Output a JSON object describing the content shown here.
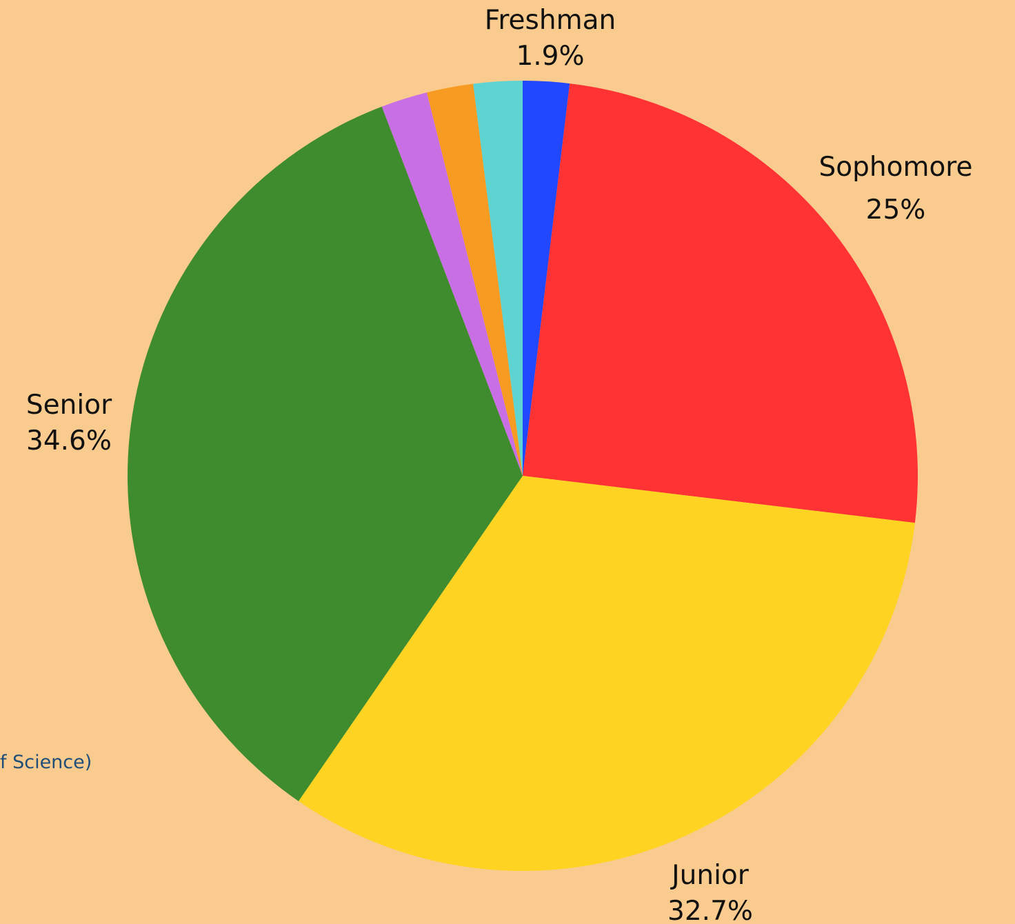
{
  "background_color": "#FACB8E",
  "partial_text": "f Science)",
  "chart_data": {
    "type": "pie",
    "title": "",
    "start_angle_deg": 0,
    "direction": "clockwise",
    "slices": [
      {
        "name": "Freshman",
        "value": 1.9,
        "label": "Freshman",
        "value_label": "1.9%",
        "color": "#2147FF"
      },
      {
        "name": "Sophomore",
        "value": 25.0,
        "label": "Sophomore",
        "value_label": "25%",
        "color": "#FF3333"
      },
      {
        "name": "Junior",
        "value": 32.7,
        "label": "Junior",
        "value_label": "32.7%",
        "color": "#FED322"
      },
      {
        "name": "Senior",
        "value": 34.6,
        "label": "Senior",
        "value_label": "34.6%",
        "color": "#3F8C2E"
      },
      {
        "name": "",
        "value": 1.9,
        "label": "",
        "value_label": "",
        "color": "#C86FE6"
      },
      {
        "name": "",
        "value": 1.9,
        "label": "",
        "value_label": "",
        "color": "#F89B22"
      },
      {
        "name": "",
        "value": 2.0,
        "label": "",
        "value_label": "",
        "color": "#5ED4D2"
      }
    ]
  }
}
